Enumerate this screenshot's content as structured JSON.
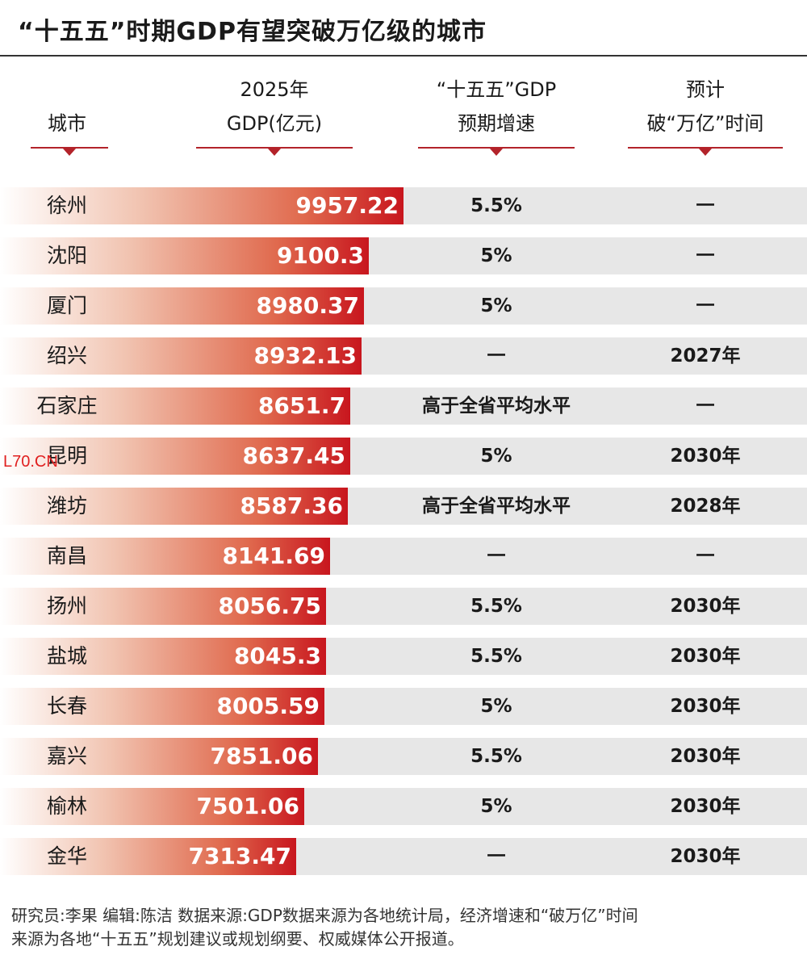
{
  "title": "“十五五”时期GDP有望突破万亿级的城市",
  "headers": {
    "city": [
      "城市"
    ],
    "gdp": [
      "2025年",
      "GDP(亿元)"
    ],
    "growth": [
      "“十五五”GDP",
      "预期增速"
    ],
    "year": [
      "预计",
      "破“万亿”时间"
    ]
  },
  "colors": {
    "accent": "#c8161e",
    "row_bg": "#e7e7e7",
    "watermark": "#e02020"
  },
  "watermark": "L70.CN",
  "chart_data": {
    "type": "bar",
    "orientation": "horizontal",
    "unit": "亿元",
    "categories": [
      "徐州",
      "沈阳",
      "厦门",
      "绍兴",
      "石家庄",
      "昆明",
      "潍坊",
      "南昌",
      "扬州",
      "盐城",
      "长春",
      "嘉兴",
      "榆林",
      "金华"
    ],
    "values": [
      9957.22,
      9100.3,
      8980.37,
      8932.13,
      8651.7,
      8637.45,
      8587.36,
      8141.69,
      8056.75,
      8045.3,
      8005.59,
      7851.06,
      7501.06,
      7313.47
    ],
    "value_labels": [
      "9957.22",
      "9100.3",
      "8980.37",
      "8932.13",
      "8651.7",
      "8637.45",
      "8587.36",
      "8141.69",
      "8056.75",
      "8045.3",
      "8005.59",
      "7851.06",
      "7501.06",
      "7313.47"
    ],
    "growth": [
      "5.5%",
      "5%",
      "5%",
      "一",
      "高于全省平均水平",
      "5%",
      "高于全省平均水平",
      "一",
      "5.5%",
      "5.5%",
      "5%",
      "5.5%",
      "5%",
      "一"
    ],
    "breakthrough_year": [
      "一",
      "一",
      "一",
      "2027年",
      "一",
      "2030年",
      "2028年",
      "一",
      "2030年",
      "2030年",
      "2030年",
      "2030年",
      "2030年",
      "2030年"
    ]
  },
  "footer": [
    "研究员:李果  编辑:陈洁  数据来源:GDP数据来源为各地统计局，经济增速和“破万亿”时间",
    "来源为各地“十五五”规划建议或规划纲要、权威媒体公开报道。"
  ]
}
